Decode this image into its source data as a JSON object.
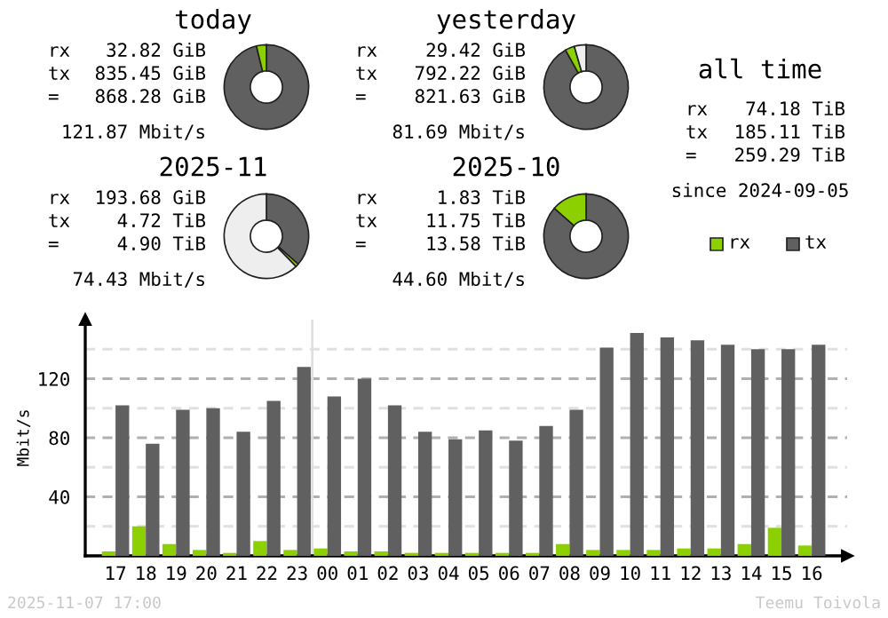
{
  "chart_data": [
    {
      "type": "donut",
      "title": "today",
      "categories": [
        null,
        null
      ],
      "values": [
        96.2,
        3.8
      ],
      "colors": [
        "#606060",
        "#8cd000"
      ],
      "annotations": [
        "rx",
        "32.82 GiB",
        "tx",
        "835.45 GiB",
        "=",
        "868.28 GiB",
        "121.87 Mbit/s"
      ]
    },
    {
      "type": "donut",
      "title": "yesterday",
      "categories": [
        null,
        null,
        null
      ],
      "values": [
        91.9,
        3.6,
        4.5
      ],
      "colors": [
        "#606060",
        "#8cd000",
        "#eeeeee"
      ],
      "annotations": [
        "rx",
        "29.42 GiB",
        "tx",
        "792.22 GiB",
        "=",
        "821.63 GiB",
        "81.69 Mbit/s"
      ]
    },
    {
      "type": "other",
      "title": "all time",
      "annotations": [
        "rx",
        "74.18 TiB",
        "tx",
        "185.11 TiB",
        "=",
        "259.29 TiB",
        "since 2024-09-05"
      ]
    },
    {
      "type": "donut",
      "title": "2025-11",
      "categories": [
        null,
        null,
        null
      ],
      "values": [
        36.5,
        1.2,
        62.3
      ],
      "colors": [
        "#606060",
        "#8cd000",
        "#eeeeee"
      ],
      "annotations": [
        "rx",
        "193.68 GiB",
        "tx",
        "4.72 TiB",
        "=",
        "4.90 TiB",
        "74.43 Mbit/s"
      ]
    },
    {
      "type": "donut",
      "title": "2025-10",
      "categories": [
        null,
        null
      ],
      "values": [
        86.5,
        13.5
      ],
      "colors": [
        "#606060",
        "#8cd000"
      ],
      "annotations": [
        "rx",
        "1.83 TiB",
        "tx",
        "11.75 TiB",
        "=",
        "13.58 TiB",
        "44.60 Mbit/s"
      ]
    },
    {
      "type": "bar",
      "ylabel": "Mbit/s",
      "categories": [
        "17",
        "18",
        "19",
        "20",
        "21",
        "22",
        "23",
        "00",
        "01",
        "02",
        "03",
        "04",
        "05",
        "06",
        "07",
        "08",
        "09",
        "10",
        "11",
        "12",
        "13",
        "14",
        "15",
        "16"
      ],
      "series": [
        {
          "name": "rx",
          "color": "#8cd000",
          "values": [
            3,
            20,
            8,
            4,
            2,
            10,
            4,
            5,
            3,
            3,
            2,
            2,
            2,
            2,
            2,
            8,
            4,
            4,
            4,
            5,
            5,
            8,
            19,
            7
          ]
        },
        {
          "name": "tx",
          "color": "#606060",
          "values": [
            102,
            76,
            99,
            100,
            84,
            105,
            128,
            108,
            120,
            102,
            84,
            79,
            85,
            78,
            88,
            99,
            141,
            151,
            148,
            146,
            143,
            140,
            140,
            143
          ]
        }
      ],
      "ylim": [
        0,
        160
      ],
      "yticks": [
        {
          "value": 20,
          "label": null
        },
        40,
        {
          "value": 60,
          "label": null
        },
        80,
        {
          "value": 100,
          "label": null
        },
        120,
        {
          "value": 140,
          "label": null
        }
      ],
      "grid": "y",
      "legend": "top right",
      "ref_lines": [
        {
          "axis": "x",
          "value": "00",
          "color": "#e0e0e0"
        }
      ],
      "annotations": [
        "2025-11-07 17:00",
        "Teemu Toivola"
      ]
    }
  ]
}
